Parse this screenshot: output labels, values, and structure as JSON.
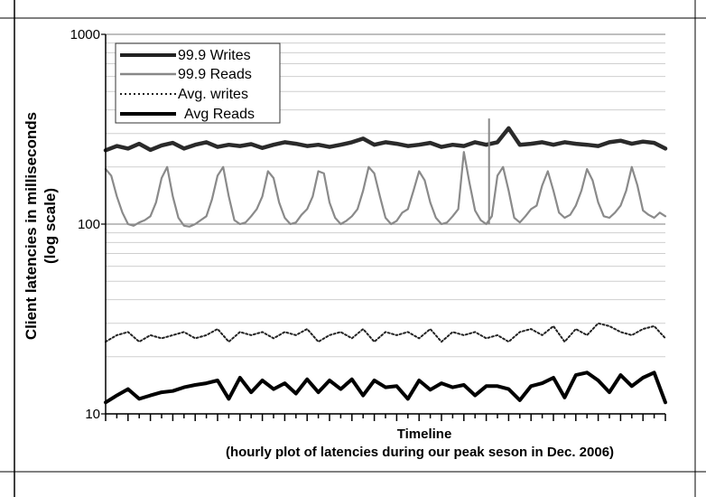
{
  "chart_data": {
    "type": "line",
    "title": "",
    "xlabel": "Timeline",
    "xlabel_sub": "(hourly plot of latencies during our peak seson in Dec. 2006)",
    "ylabel_line1": "Client latencies in milliseconds",
    "ylabel_line2": "(log scale)",
    "y_scale": "log",
    "ylim": [
      10,
      1000
    ],
    "y_ticks": [
      "1000",
      "100",
      "10"
    ],
    "y_tick_values": [
      1000,
      100,
      10
    ],
    "x_tick_count": 51,
    "grid": "horizontal minor + major",
    "legend_position": "top-left",
    "series": [
      {
        "name": "99.9 Writes",
        "color": "#222222",
        "style": "thick-textured",
        "x": [
          0,
          2,
          4,
          6,
          8,
          10,
          12,
          14,
          16,
          18,
          20,
          22,
          24,
          26,
          28,
          30,
          32,
          34,
          36,
          38,
          40,
          42,
          44,
          46,
          48,
          50,
          52,
          54,
          56,
          58,
          60,
          62,
          64,
          66,
          68,
          70,
          72,
          74,
          76,
          78,
          80,
          82,
          84,
          86,
          88,
          90,
          92,
          94,
          96,
          98,
          100
        ],
        "values": [
          245,
          258,
          250,
          265,
          246,
          260,
          268,
          250,
          262,
          270,
          255,
          262,
          258,
          264,
          252,
          262,
          270,
          265,
          258,
          262,
          255,
          262,
          270,
          282,
          262,
          270,
          265,
          258,
          262,
          268,
          255,
          262,
          258,
          270,
          262,
          270,
          320,
          262,
          265,
          270,
          262,
          270,
          265,
          262,
          258,
          270,
          275,
          265,
          272,
          268,
          250
        ]
      },
      {
        "name": "99.9 Reads",
        "color": "#888888",
        "style": "solid",
        "x": [
          0,
          1,
          2,
          3,
          4,
          5,
          6,
          7,
          8,
          9,
          10,
          11,
          12,
          13,
          14,
          15,
          16,
          17,
          18,
          19,
          20,
          21,
          22,
          23,
          24,
          25,
          26,
          27,
          28,
          29,
          30,
          31,
          32,
          33,
          34,
          35,
          36,
          37,
          38,
          39,
          40,
          41,
          42,
          43,
          44,
          45,
          46,
          47,
          48,
          49,
          50,
          51,
          52,
          53,
          54,
          55,
          56,
          57,
          58,
          59,
          60,
          61,
          62,
          63,
          64,
          65,
          66,
          67,
          68,
          69,
          70,
          71,
          72,
          73,
          74,
          75,
          76,
          77,
          78,
          79,
          80,
          81,
          82,
          83,
          84,
          85,
          86,
          87,
          88,
          89,
          90,
          91,
          92,
          93,
          94,
          95,
          96,
          97,
          98,
          99,
          100
        ],
        "values": [
          195,
          180,
          140,
          115,
          100,
          98,
          102,
          105,
          110,
          130,
          175,
          200,
          140,
          108,
          98,
          97,
          100,
          105,
          110,
          135,
          180,
          200,
          140,
          105,
          100,
          102,
          110,
          120,
          140,
          190,
          175,
          130,
          108,
          100,
          102,
          112,
          120,
          140,
          190,
          185,
          130,
          108,
          100,
          104,
          110,
          120,
          150,
          200,
          185,
          140,
          108,
          100,
          104,
          115,
          120,
          150,
          190,
          170,
          130,
          108,
          100,
          102,
          110,
          120,
          240,
          165,
          118,
          105,
          100,
          110,
          180,
          200,
          150,
          108,
          102,
          110,
          120,
          125,
          160,
          190,
          150,
          115,
          108,
          112,
          125,
          150,
          195,
          170,
          130,
          110,
          108,
          115,
          125,
          150,
          200,
          160,
          118,
          112,
          108,
          115,
          110
        ]
      },
      {
        "name": "Avg. writes",
        "color": "#222222",
        "style": "dotted",
        "x": [
          0,
          2,
          4,
          6,
          8,
          10,
          12,
          14,
          16,
          18,
          20,
          22,
          24,
          26,
          28,
          30,
          32,
          34,
          36,
          38,
          40,
          42,
          44,
          46,
          48,
          50,
          52,
          54,
          56,
          58,
          60,
          62,
          64,
          66,
          68,
          70,
          72,
          74,
          76,
          78,
          80,
          82,
          84,
          86,
          88,
          90,
          92,
          94,
          96,
          98,
          100
        ],
        "values": [
          24,
          26,
          27,
          24,
          26,
          25,
          26,
          27,
          25,
          26,
          28,
          24,
          27,
          26,
          27,
          25,
          27,
          26,
          28,
          24,
          26,
          27,
          25,
          28,
          24,
          27,
          26,
          27,
          25,
          28,
          24,
          27,
          26,
          27,
          25,
          26,
          24,
          27,
          28,
          26,
          29,
          24,
          28,
          26,
          30,
          29,
          27,
          26,
          28,
          29,
          25
        ]
      },
      {
        "name": "Avg Reads",
        "color": "#000000",
        "style": "thick",
        "x": [
          0,
          2,
          4,
          6,
          8,
          10,
          12,
          14,
          16,
          18,
          20,
          22,
          24,
          26,
          28,
          30,
          32,
          34,
          36,
          38,
          40,
          42,
          44,
          46,
          48,
          50,
          52,
          54,
          56,
          58,
          60,
          62,
          64,
          66,
          68,
          70,
          72,
          74,
          76,
          78,
          80,
          82,
          84,
          86,
          88,
          90,
          92,
          94,
          96,
          98,
          100
        ],
        "values": [
          11.5,
          12.5,
          13.5,
          12,
          12.5,
          13,
          13.2,
          13.8,
          14.2,
          14.5,
          15,
          12,
          15.5,
          13,
          15,
          13.5,
          14.5,
          12.8,
          15.2,
          13,
          15,
          13.5,
          15.2,
          12.5,
          15,
          13.8,
          14,
          12,
          15,
          13.4,
          14.5,
          13.8,
          14.2,
          12.5,
          14,
          14,
          13.5,
          11.8,
          14,
          14.5,
          15.5,
          12.2,
          16,
          16.5,
          15,
          13,
          16,
          14,
          15.5,
          16.5,
          11.5
        ]
      }
    ]
  }
}
